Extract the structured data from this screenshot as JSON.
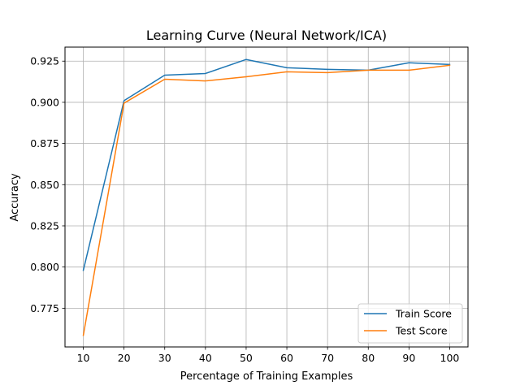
{
  "chart_data": {
    "type": "line",
    "title": "Learning Curve (Neural Network/ICA)",
    "xlabel": "Percentage of Training Examples",
    "ylabel": "Accuracy",
    "x": [
      10,
      20,
      30,
      40,
      50,
      60,
      70,
      80,
      90,
      100
    ],
    "xticks": [
      "10",
      "20",
      "30",
      "40",
      "50",
      "60",
      "70",
      "80",
      "90",
      "100"
    ],
    "yticks": [
      "0.775",
      "0.800",
      "0.825",
      "0.850",
      "0.875",
      "0.900",
      "0.925"
    ],
    "ytick_values": [
      0.775,
      0.8,
      0.825,
      0.85,
      0.875,
      0.9,
      0.925
    ],
    "xlim": [
      5.5,
      104.5
    ],
    "ylim": [
      0.7515,
      0.9335
    ],
    "grid": true,
    "legend_position": "lower-right",
    "series": [
      {
        "name": "Train Score",
        "color": "#1f77b4",
        "values": [
          0.798,
          0.901,
          0.9165,
          0.9175,
          0.926,
          0.921,
          0.92,
          0.9195,
          0.924,
          0.923
        ]
      },
      {
        "name": "Test Score",
        "color": "#ff7f0e",
        "values": [
          0.7585,
          0.8995,
          0.914,
          0.913,
          0.9155,
          0.9185,
          0.918,
          0.9195,
          0.9195,
          0.9225
        ]
      }
    ]
  }
}
